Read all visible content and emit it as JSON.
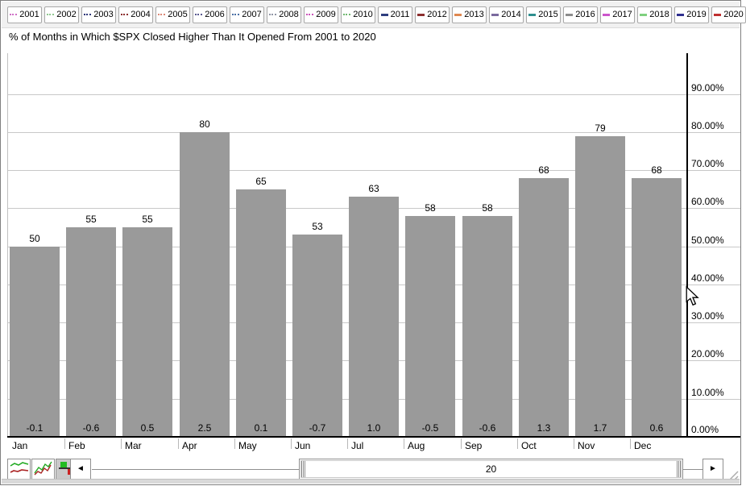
{
  "window": {
    "background": "#ffffff",
    "border_color": "#808080"
  },
  "legend": {
    "years": [
      {
        "label": "2001",
        "color": "#cf6fc7",
        "style": "dotted"
      },
      {
        "label": "2002",
        "color": "#8fc88f",
        "style": "dotted"
      },
      {
        "label": "2003",
        "color": "#30387a",
        "style": "dotted"
      },
      {
        "label": "2004",
        "color": "#8c3030",
        "style": "dotted"
      },
      {
        "label": "2005",
        "color": "#dd8876",
        "style": "dotted"
      },
      {
        "label": "2006",
        "color": "#585890",
        "style": "dotted"
      },
      {
        "label": "2007",
        "color": "#4a6fa5",
        "style": "dotted"
      },
      {
        "label": "2008",
        "color": "#9095a5",
        "style": "dotted"
      },
      {
        "label": "2009",
        "color": "#cc55bb",
        "style": "dotted"
      },
      {
        "label": "2010",
        "color": "#70b870",
        "style": "dotted"
      },
      {
        "label": "2011",
        "color": "#2f3f7f",
        "style": "solid"
      },
      {
        "label": "2012",
        "color": "#8c2f2f",
        "style": "solid"
      },
      {
        "label": "2013",
        "color": "#e08850",
        "style": "solid"
      },
      {
        "label": "2014",
        "color": "#7a6a9e",
        "style": "solid"
      },
      {
        "label": "2015",
        "color": "#2f8f8f",
        "style": "solid"
      },
      {
        "label": "2016",
        "color": "#8c8c8c",
        "style": "solid"
      },
      {
        "label": "2017",
        "color": "#cc55cc",
        "style": "solid"
      },
      {
        "label": "2018",
        "color": "#7fd07f",
        "style": "solid"
      },
      {
        "label": "2019",
        "color": "#2f2f8f",
        "style": "solid"
      },
      {
        "label": "2020",
        "color": "#bf3030",
        "style": "solid"
      }
    ]
  },
  "header": {
    "title": "% of Months in Which $SPX Closed Higher Than It Opened From 2001 to 2020"
  },
  "chart_data": {
    "type": "bar",
    "title": "% of Months in Which $SPX Closed Higher Than It Opened From 2001 to 2020",
    "categories": [
      "Jan",
      "Feb",
      "Mar",
      "Apr",
      "May",
      "Jun",
      "Jul",
      "Aug",
      "Sep",
      "Oct",
      "Nov",
      "Dec"
    ],
    "values": [
      50,
      55,
      55,
      80,
      65,
      53,
      63,
      58,
      58,
      68,
      79,
      68
    ],
    "bar_bottom_labels": [
      "-0.1",
      "-0.6",
      "0.5",
      "2.5",
      "0.1",
      "-0.7",
      "1.0",
      "-0.5",
      "-0.6",
      "1.3",
      "1.7",
      "0.6"
    ],
    "xlabel": "",
    "ylabel": "",
    "ylim": [
      0,
      100
    ],
    "grid": true,
    "legend_position": "top",
    "y_axis": {
      "side": "right",
      "min": 0,
      "max": 100,
      "tick_step": 10,
      "tick_labels": [
        "0.00%",
        "10.00%",
        "20.00%",
        "30.00%",
        "40.00%",
        "50.00%",
        "60.00%",
        "70.00%",
        "80.00%",
        "90.00%"
      ]
    },
    "bar_color": "#9a9a9a",
    "axis_color": "#000000",
    "grid_color": "#c8c8c8"
  },
  "toolbar": {
    "chart_type_buttons": [
      {
        "icon": "line-chart-icon",
        "selected": false
      },
      {
        "icon": "zigzag-line-chart-icon",
        "selected": false
      },
      {
        "icon": "bar-chart-icon",
        "selected": true
      }
    ],
    "scrollbar": {
      "left_arrow": "◄",
      "right_arrow": "►",
      "thumb_label": "20"
    }
  },
  "icons": {
    "resize_grip": "resize-grip-icon",
    "mouse_cursor": "mouse-arrow-cursor"
  }
}
